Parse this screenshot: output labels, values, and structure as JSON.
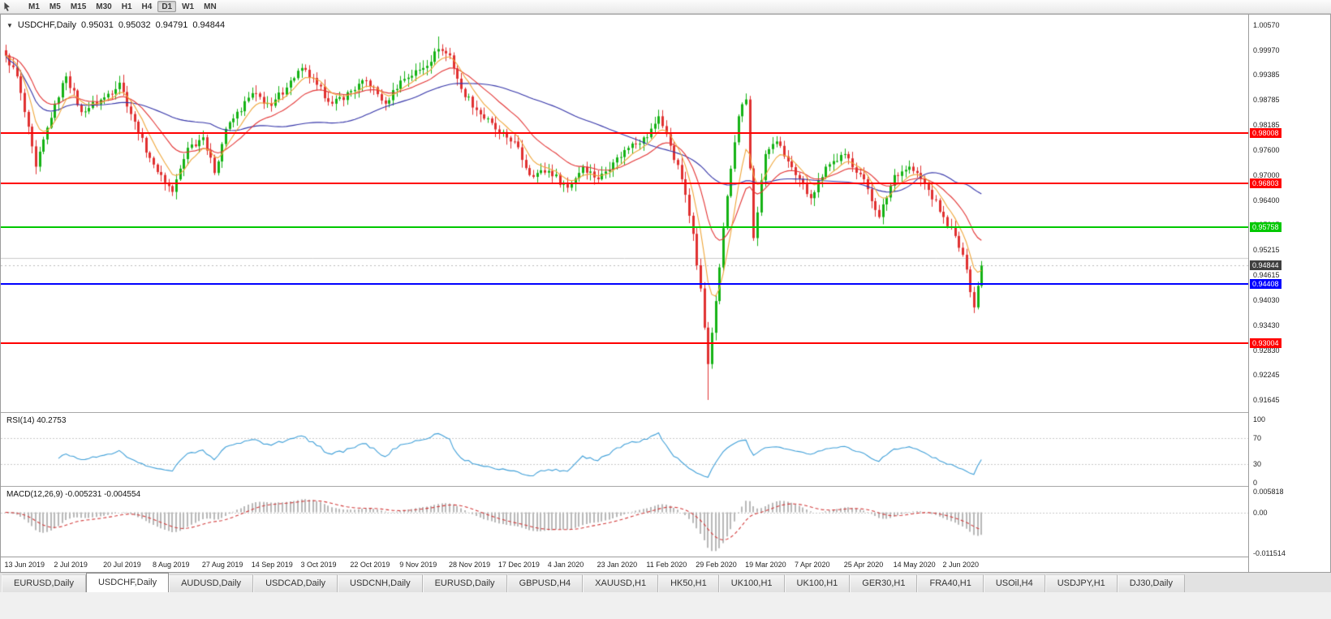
{
  "toolbar": {
    "icons": [
      {
        "name": "cursor-tool-icon"
      }
    ],
    "timeframes": [
      "M1",
      "M5",
      "M15",
      "M30",
      "H1",
      "H4",
      "D1",
      "W1",
      "MN"
    ],
    "active_timeframe": "D1"
  },
  "chart": {
    "dropdown_glyph": "▼",
    "symbol_label": "USDCHF,Daily",
    "quote": {
      "open": "0.95031",
      "high": "0.95032",
      "low": "0.94791",
      "close": "0.94844"
    }
  },
  "chart_data": {
    "type": "candlestick",
    "symbol": "USDCHF",
    "timeframe": "Daily",
    "title": "USDCHF,Daily",
    "y_axis": {
      "min": 0.91645,
      "max": 1.0057,
      "ticks": [
        "1.00570",
        "0.99970",
        "0.99385",
        "0.98785",
        "0.98185",
        "0.97600",
        "0.97000",
        "0.96400",
        "0.95815",
        "0.95215",
        "0.94615",
        "0.94030",
        "0.93430",
        "0.92830",
        "0.92245",
        "0.91645"
      ]
    },
    "x_axis": {
      "labels": [
        "13 Jun 2019",
        "2 Jul 2019",
        "20 Jul 2019",
        "8 Aug 2019",
        "27 Aug 2019",
        "14 Sep 2019",
        "3 Oct 2019",
        "22 Oct 2019",
        "9 Nov 2019",
        "28 Nov 2019",
        "17 Dec 2019",
        "4 Jan 2020",
        "23 Jan 2020",
        "11 Feb 2020",
        "29 Feb 2020",
        "19 Mar 2020",
        "7 Apr 2020",
        "25 Apr 2020",
        "14 May 2020",
        "2 Jun 2020"
      ],
      "bars_per_label": 13
    },
    "candles_count": 258,
    "price_waypoints": [
      [
        0,
        0.9985
      ],
      [
        3,
        0.9935
      ],
      [
        8,
        0.972
      ],
      [
        13,
        0.987
      ],
      [
        16,
        0.9935
      ],
      [
        20,
        0.985
      ],
      [
        26,
        0.9885
      ],
      [
        30,
        0.992
      ],
      [
        35,
        0.98
      ],
      [
        39,
        0.9725
      ],
      [
        44,
        0.966
      ],
      [
        48,
        0.9765
      ],
      [
        52,
        0.979
      ],
      [
        55,
        0.9705
      ],
      [
        58,
        0.981
      ],
      [
        65,
        0.9895
      ],
      [
        70,
        0.9865
      ],
      [
        75,
        0.9925
      ],
      [
        78,
        0.9955
      ],
      [
        82,
        0.9915
      ],
      [
        86,
        0.987
      ],
      [
        91,
        0.99
      ],
      [
        95,
        0.9925
      ],
      [
        100,
        0.987
      ],
      [
        104,
        0.9925
      ],
      [
        110,
        0.9955
      ],
      [
        114,
        1.0
      ],
      [
        117,
        0.9985
      ],
      [
        120,
        0.9905
      ],
      [
        124,
        0.9855
      ],
      [
        130,
        0.98
      ],
      [
        134,
        0.978
      ],
      [
        138,
        0.97
      ],
      [
        143,
        0.971
      ],
      [
        148,
        0.967
      ],
      [
        152,
        0.972
      ],
      [
        156,
        0.969
      ],
      [
        160,
        0.973
      ],
      [
        165,
        0.9775
      ],
      [
        169,
        0.979
      ],
      [
        172,
        0.984
      ],
      [
        175,
        0.977
      ],
      [
        178,
        0.969
      ],
      [
        181,
        0.956
      ],
      [
        183,
        0.943
      ],
      [
        185,
        0.925
      ],
      [
        187,
        0.94
      ],
      [
        190,
        0.965
      ],
      [
        193,
        0.984
      ],
      [
        195,
        0.988
      ],
      [
        197,
        0.955
      ],
      [
        200,
        0.975
      ],
      [
        203,
        0.978
      ],
      [
        208,
        0.97
      ],
      [
        212,
        0.9645
      ],
      [
        216,
        0.972
      ],
      [
        221,
        0.975
      ],
      [
        226,
        0.969
      ],
      [
        230,
        0.96
      ],
      [
        234,
        0.97
      ],
      [
        238,
        0.972
      ],
      [
        242,
        0.968
      ],
      [
        247,
        0.96
      ],
      [
        250,
        0.9555
      ],
      [
        253,
        0.9475
      ],
      [
        255,
        0.9385
      ],
      [
        257,
        0.94844
      ]
    ],
    "spike_low": {
      "index": 185,
      "price": 0.91645
    },
    "spike_high": {
      "index": 114,
      "price": 1.003
    },
    "last_close": 0.94844,
    "current_price": {
      "value": 0.94844,
      "label": "0.94844",
      "tag_color": "#3f3f3f"
    },
    "horizontal_levels": [
      {
        "price": 0.98008,
        "label": "0.98008",
        "color": "#ff0000"
      },
      {
        "price": 0.96803,
        "label": "0.96803",
        "color": "#ff0000"
      },
      {
        "price": 0.95758,
        "label": "0.95758",
        "color": "#00c800"
      },
      {
        "price": 0.94408,
        "label": "0.94408",
        "color": "#0000ff"
      },
      {
        "price": 0.93004,
        "label": "0.93004",
        "color": "#ff0000"
      }
    ],
    "plain_lines": [
      {
        "price": 0.95031,
        "color": "#c9c9c9"
      }
    ],
    "candle_colors": {
      "up": "#14b214",
      "down": "#e03030"
    },
    "moving_averages": [
      {
        "period": 7,
        "method": "ema",
        "color": "#efa63a"
      },
      {
        "period": 19,
        "method": "ema",
        "color": "#e33434"
      },
      {
        "period": 55,
        "method": "sma",
        "color": "#3434a8"
      }
    ],
    "indicators": [
      {
        "name": "RSI",
        "label": "RSI(14) 40.2753",
        "period": 14,
        "value": 40.2753,
        "levels": [
          "100",
          "70",
          "30",
          "0"
        ],
        "line_color": "#3f9fd8",
        "level_color": "#c8c8c8"
      },
      {
        "name": "MACD",
        "label": "MACD(12,26,9) -0.005231 -0.004554",
        "params": [
          12,
          26,
          9
        ],
        "values": [
          -0.005231,
          -0.004554
        ],
        "scale_labels": [
          "0.005818",
          "0.00",
          "-0.011514"
        ],
        "histogram_color": "#b8b8b8",
        "signal_color": "#d23c3c",
        "level_color": "#c8c8c8"
      }
    ]
  },
  "tabs": {
    "items": [
      "EURUSD,Daily",
      "USDCHF,Daily",
      "AUDUSD,Daily",
      "USDCAD,Daily",
      "USDCNH,Daily",
      "EURUSD,Daily",
      "GBPUSD,H4",
      "XAUUSD,H1",
      "HK50,H1",
      "UK100,H1",
      "UK100,H1",
      "GER30,H1",
      "FRA40,H1",
      "USOil,H4",
      "USDJPY,H1",
      "DJ30,Daily"
    ],
    "active_index": 1
  }
}
